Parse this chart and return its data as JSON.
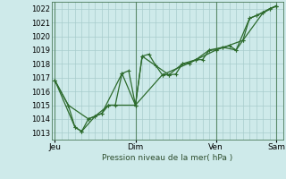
{
  "background_color": "#ceeaea",
  "grid_color": "#a8cccc",
  "day_line_color": "#5a8a6a",
  "line_color": "#2d6b2d",
  "ylabel": "Pression niveau de la mer( hPa )",
  "ylim": [
    1012.5,
    1022.5
  ],
  "yticks": [
    1013,
    1014,
    1015,
    1016,
    1017,
    1018,
    1019,
    1020,
    1021,
    1022
  ],
  "x_tick_labels": [
    "Jeu",
    "Dim",
    "Ven",
    "Sam"
  ],
  "x_tick_positions": [
    0,
    96,
    192,
    264
  ],
  "xlim": [
    -4,
    272
  ],
  "series1": [
    [
      0,
      1016.8
    ],
    [
      16,
      1015.0
    ],
    [
      24,
      1013.4
    ],
    [
      32,
      1013.1
    ],
    [
      40,
      1014.0
    ],
    [
      48,
      1014.2
    ],
    [
      56,
      1014.4
    ],
    [
      64,
      1015.0
    ],
    [
      72,
      1015.0
    ],
    [
      80,
      1017.3
    ],
    [
      88,
      1017.5
    ],
    [
      96,
      1015.0
    ],
    [
      104,
      1018.55
    ],
    [
      112,
      1018.7
    ],
    [
      120,
      1017.9
    ],
    [
      128,
      1017.2
    ],
    [
      136,
      1017.2
    ],
    [
      144,
      1017.25
    ],
    [
      152,
      1018.0
    ],
    [
      160,
      1018.05
    ],
    [
      168,
      1018.3
    ],
    [
      176,
      1018.3
    ],
    [
      184,
      1019.0
    ],
    [
      192,
      1019.0
    ],
    [
      200,
      1019.2
    ],
    [
      208,
      1019.3
    ],
    [
      216,
      1019.0
    ],
    [
      224,
      1019.7
    ],
    [
      232,
      1021.3
    ],
    [
      240,
      1021.5
    ],
    [
      248,
      1021.7
    ],
    [
      256,
      1022.0
    ],
    [
      264,
      1022.2
    ]
  ],
  "series2": [
    [
      0,
      1016.8
    ],
    [
      24,
      1013.4
    ],
    [
      32,
      1013.1
    ],
    [
      48,
      1014.2
    ],
    [
      64,
      1015.0
    ],
    [
      96,
      1015.0
    ],
    [
      128,
      1017.2
    ],
    [
      160,
      1018.05
    ],
    [
      192,
      1019.0
    ],
    [
      224,
      1019.7
    ],
    [
      248,
      1021.7
    ],
    [
      264,
      1022.2
    ]
  ],
  "series3": [
    [
      0,
      1016.8
    ],
    [
      16,
      1015.0
    ],
    [
      40,
      1014.0
    ],
    [
      56,
      1014.4
    ],
    [
      80,
      1017.3
    ],
    [
      96,
      1015.0
    ],
    [
      104,
      1018.55
    ],
    [
      136,
      1017.2
    ],
    [
      152,
      1018.0
    ],
    [
      168,
      1018.3
    ],
    [
      184,
      1019.0
    ],
    [
      200,
      1019.2
    ],
    [
      216,
      1019.0
    ],
    [
      232,
      1021.3
    ],
    [
      240,
      1021.5
    ],
    [
      256,
      1022.0
    ],
    [
      264,
      1022.2
    ]
  ]
}
